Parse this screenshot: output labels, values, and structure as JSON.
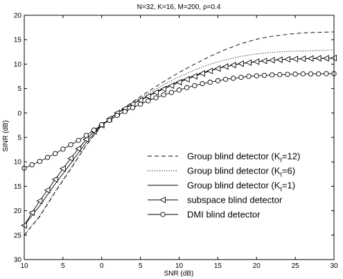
{
  "chart_data": {
    "type": "line",
    "title": "N=32, K=16, M=200, ρ=0.4",
    "xlabel": "SNR (dB)",
    "ylabel": "SINR (dB)",
    "xlim": [
      -10,
      30
    ],
    "ylim": [
      -30,
      20
    ],
    "x_ticks": [
      -10,
      -5,
      0,
      5,
      10,
      15,
      20,
      25,
      30
    ],
    "x_tick_labels": [
      "10",
      "5",
      "0",
      "5",
      "10",
      "15",
      "20",
      "25",
      "30"
    ],
    "y_ticks": [
      20,
      15,
      10,
      5,
      0,
      -5,
      -10,
      -15,
      -20,
      -25,
      -30
    ],
    "y_tick_labels": [
      "20",
      "15",
      "10",
      "5",
      "0",
      "5",
      "10",
      "15",
      "20",
      "25",
      "30"
    ],
    "grid": false,
    "legend_position": "bottom-right",
    "series": [
      {
        "name": "Group blind detector (K_t=12)",
        "style": "dashed",
        "marker": "none",
        "color": "#000000",
        "x": [
          -10,
          -8,
          -6,
          -4,
          -2,
          0,
          2,
          4,
          6,
          8,
          10,
          12,
          14,
          16,
          18,
          20,
          22,
          24,
          26,
          28,
          30
        ],
        "y": [
          -25.0,
          -21.2,
          -16.2,
          -11.5,
          -6.6,
          -2.6,
          0.0,
          2.3,
          4.4,
          6.4,
          8.3,
          10.0,
          11.6,
          13.0,
          14.2,
          15.1,
          15.7,
          16.1,
          16.4,
          16.5,
          16.6
        ]
      },
      {
        "name": "Group blind detector (K_t=6)",
        "style": "dotted",
        "marker": "none",
        "color": "#000000",
        "x": [
          -10,
          -8,
          -6,
          -4,
          -2,
          0,
          2,
          4,
          6,
          8,
          10,
          12,
          14,
          16,
          18,
          20,
          22,
          24,
          26,
          28,
          30
        ],
        "y": [
          -25.0,
          -21.0,
          -16.0,
          -11.3,
          -6.6,
          -2.6,
          0.0,
          2.1,
          4.0,
          5.8,
          7.4,
          8.8,
          10.0,
          10.9,
          11.6,
          12.1,
          12.4,
          12.6,
          12.7,
          12.8,
          12.9
        ]
      },
      {
        "name": "Group blind detector (K_t=1)",
        "style": "solid",
        "marker": "none",
        "color": "#000000",
        "x": [
          -10,
          -8,
          -6,
          -4,
          -2,
          0,
          2,
          4,
          6,
          8,
          10,
          12,
          14,
          16,
          18,
          20,
          22,
          24,
          26,
          28,
          30
        ],
        "y": [
          -23.0,
          -19.0,
          -14.5,
          -10.3,
          -6.0,
          -2.5,
          0.0,
          1.8,
          3.5,
          5.1,
          6.5,
          7.7,
          8.7,
          9.5,
          10.1,
          10.5,
          10.8,
          11.0,
          11.1,
          11.15,
          11.2
        ]
      },
      {
        "name": "subspace blind detector",
        "style": "solid",
        "marker": "triangle-left",
        "color": "#000000",
        "x": [
          -10,
          -9,
          -8,
          -7,
          -6,
          -5,
          -4,
          -3,
          -2,
          -1,
          0,
          1,
          2,
          3,
          4,
          5,
          6,
          7,
          8,
          9,
          10,
          11,
          12,
          13,
          14,
          15,
          16,
          17,
          18,
          19,
          20,
          21,
          22,
          23,
          24,
          25,
          26,
          27,
          28,
          29,
          30
        ],
        "y": [
          -23.0,
          -20.4,
          -18.0,
          -15.8,
          -13.6,
          -11.4,
          -9.3,
          -7.3,
          -5.4,
          -3.8,
          -2.5,
          -1.2,
          0.0,
          0.9,
          1.8,
          2.6,
          3.4,
          4.2,
          4.9,
          5.6,
          6.3,
          6.9,
          7.5,
          8.1,
          8.6,
          9.1,
          9.5,
          9.8,
          10.1,
          10.3,
          10.5,
          10.65,
          10.8,
          10.9,
          11.0,
          11.05,
          11.1,
          11.15,
          11.2,
          11.2,
          11.25
        ]
      },
      {
        "name": "DMI blind detector",
        "style": "solid",
        "marker": "circle",
        "color": "#000000",
        "x": [
          -10,
          -9,
          -8,
          -7,
          -6,
          -5,
          -4,
          -3,
          -2,
          -1,
          0,
          1,
          2,
          3,
          4,
          5,
          6,
          7,
          8,
          9,
          10,
          11,
          12,
          13,
          14,
          15,
          16,
          17,
          18,
          19,
          20,
          21,
          22,
          23,
          24,
          25,
          26,
          27,
          28,
          29,
          30
        ],
        "y": [
          -11.3,
          -10.6,
          -9.9,
          -9.1,
          -8.3,
          -7.4,
          -6.5,
          -5.6,
          -4.6,
          -3.5,
          -2.4,
          -1.5,
          -0.5,
          0.3,
          1.1,
          1.8,
          2.5,
          3.1,
          3.7,
          4.2,
          4.7,
          5.2,
          5.6,
          6.0,
          6.3,
          6.6,
          6.9,
          7.1,
          7.3,
          7.5,
          7.6,
          7.7,
          7.8,
          7.85,
          7.9,
          7.95,
          8.0,
          8.0,
          8.0,
          8.05,
          8.05
        ]
      }
    ]
  },
  "legend": [
    {
      "main": "Group blind detector (K",
      "sub": "t",
      "tail": "=12)"
    },
    {
      "main": "Group blind detector (K",
      "sub": "t",
      "tail": "=6)"
    },
    {
      "main": "Group blind detector (K",
      "sub": "t",
      "tail": "=1)"
    },
    {
      "main": "subspace blind detector",
      "sub": "",
      "tail": ""
    },
    {
      "main": "DMI blind detector",
      "sub": "",
      "tail": ""
    }
  ]
}
